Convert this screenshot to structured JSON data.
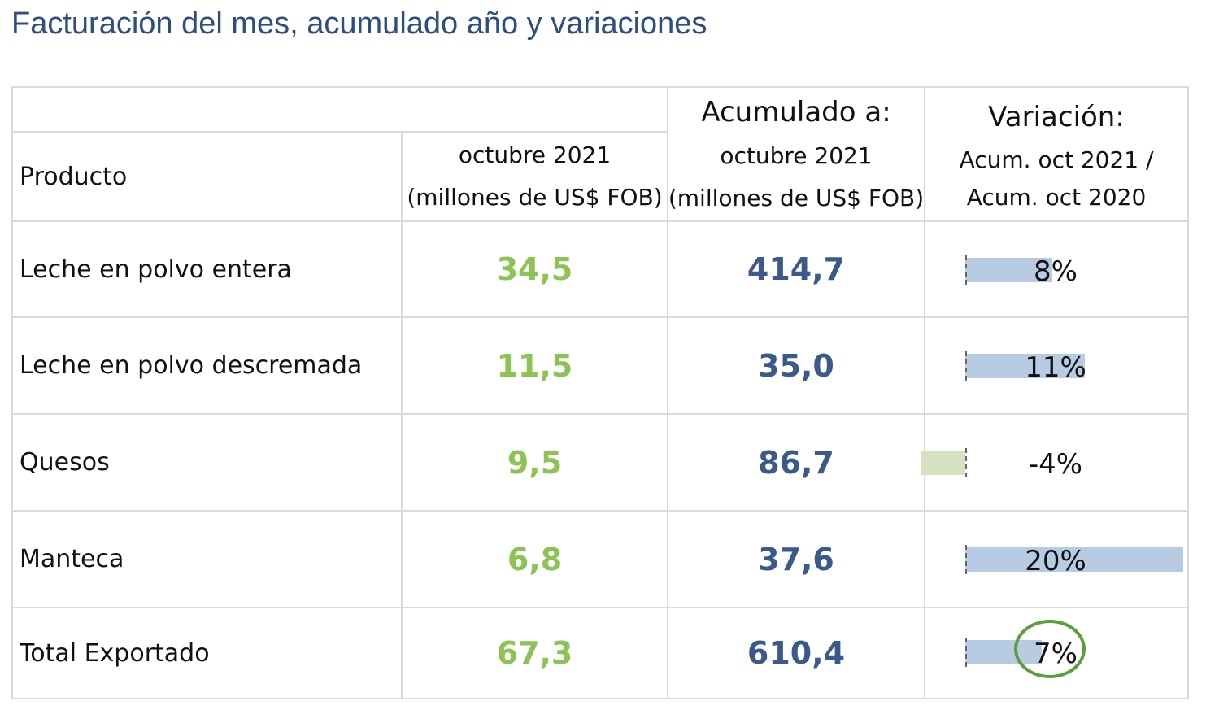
{
  "title": "Facturación del mes, acumulado año y variaciones",
  "header": {
    "product_label": "Producto",
    "month_line1": "octubre 2021",
    "month_line2": "(millones de US$ FOB)",
    "accum_title": "Acumulado a:",
    "accum_line1": "octubre 2021",
    "accum_line2": "(millones de US$ FOB)",
    "var_title": "Variación:",
    "var_line1": "Acum. oct 2021 /",
    "var_line2": "Acum. oct 2020"
  },
  "rows": [
    {
      "product": "Leche en polvo entera",
      "month": "34,5",
      "accum": "414,7",
      "variation": "8%",
      "variation_value": 8
    },
    {
      "product": "Leche en polvo descremada",
      "month": "11,5",
      "accum": "35,0",
      "variation": "11%",
      "variation_value": 11
    },
    {
      "product": "Quesos",
      "month": "9,5",
      "accum": "86,7",
      "variation": "-4%",
      "variation_value": -4
    },
    {
      "product": "Manteca",
      "month": "6,8",
      "accum": "37,6",
      "variation": "20%",
      "variation_value": 20
    },
    {
      "product": "Total Exportado",
      "month": "67,3",
      "accum": "610,4",
      "variation": "7%",
      "variation_value": 7
    }
  ],
  "highlighted_row": "Total Exportado",
  "colors": {
    "title": "#2e4d80",
    "month_values": "#8cc454",
    "accum_values": "#3a5a8c",
    "positive_bar": "#b7cce3",
    "negative_bar": "#d5e3c2",
    "highlight_circle": "#5b9e3a",
    "grid": "#dadada"
  }
}
